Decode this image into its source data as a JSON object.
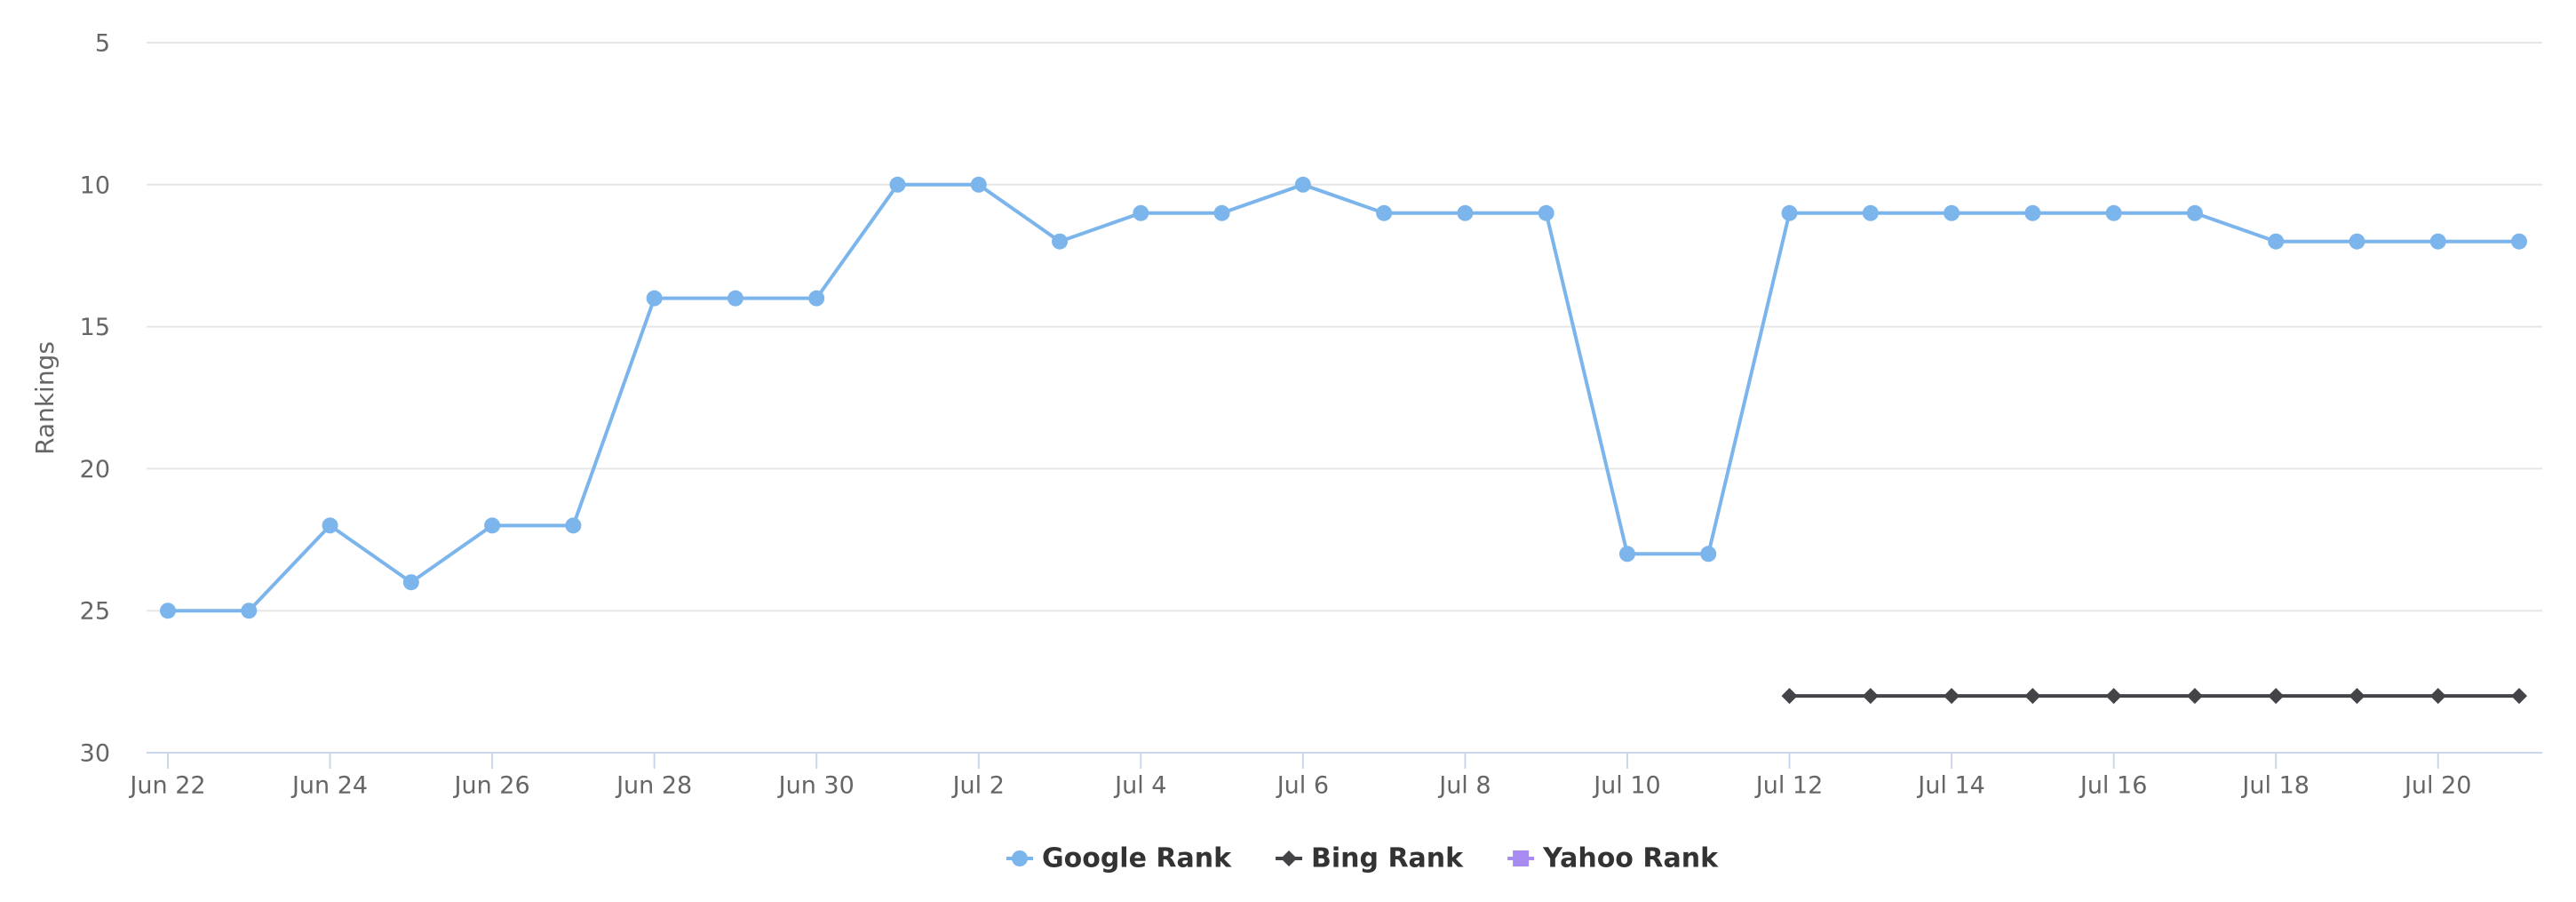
{
  "chart_data": {
    "type": "line",
    "y_axis_label": "Rankings",
    "categories": [
      "Jun 22",
      null,
      "Jun 24",
      null,
      "Jun 26",
      null,
      "Jun 28",
      null,
      "Jun 30",
      null,
      "Jul 2",
      null,
      "Jul 4",
      null,
      "Jul 6",
      null,
      "Jul 8",
      null,
      "Jul 10",
      null,
      "Jul 12",
      null,
      "Jul 14",
      null,
      "Jul 16",
      null,
      "Jul 18",
      null,
      "Jul 20",
      null
    ],
    "series": [
      {
        "name": "Google Rank",
        "color": "#7cb5ec",
        "marker": "circle",
        "values": [
          25,
          25,
          22,
          24,
          22,
          22,
          14,
          14,
          14,
          10,
          10,
          12,
          11,
          11,
          10,
          11,
          11,
          11,
          23,
          23,
          11,
          11,
          11,
          11,
          11,
          11,
          12,
          12,
          12,
          12
        ]
      },
      {
        "name": "Bing Rank",
        "color": "#434348",
        "marker": "diamond",
        "values": [
          null,
          null,
          null,
          null,
          null,
          null,
          null,
          null,
          null,
          null,
          null,
          null,
          null,
          null,
          null,
          null,
          null,
          null,
          null,
          null,
          28,
          28,
          28,
          28,
          28,
          28,
          28,
          28,
          28,
          28
        ]
      },
      {
        "name": "Yahoo Rank",
        "color": "#a88bf0",
        "marker": "square",
        "values": [
          null,
          null,
          null,
          null,
          null,
          null,
          null,
          null,
          null,
          null,
          null,
          null,
          null,
          null,
          null,
          null,
          null,
          null,
          null,
          null,
          null,
          null,
          null,
          null,
          null,
          null,
          null,
          null,
          null,
          null
        ]
      }
    ],
    "ylim": [
      5,
      30
    ],
    "yticks": [
      5,
      10,
      15,
      20,
      25,
      30
    ],
    "y_reversed": true,
    "grid": true
  }
}
